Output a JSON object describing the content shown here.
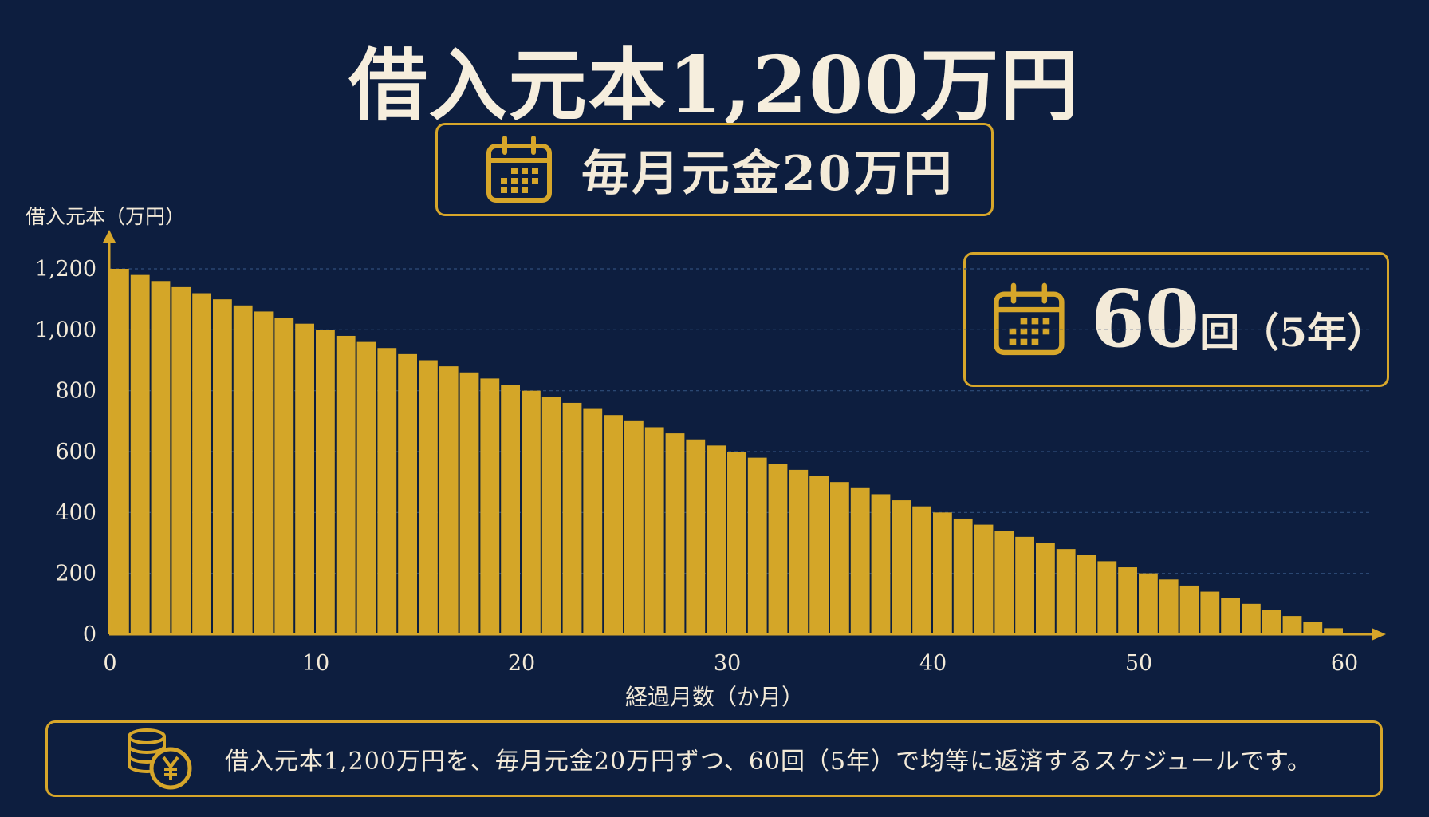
{
  "header": {
    "title": "借入元本1,200万円"
  },
  "monthly_box": {
    "icon": "calendar-icon",
    "text": "毎月元金20万円"
  },
  "term_box": {
    "icon": "calendar-icon",
    "count": "60",
    "suffix": "回（5年）"
  },
  "summary": {
    "icon": "yen-coins-icon",
    "text": "借入元本1,200万円を、毎月元金20万円ずつ、60回（5年）で均等に返済するスケジュールです。"
  },
  "colors": {
    "background": "#0d1e3f",
    "accent": "#d6a62a",
    "bar": "#d4a628",
    "text": "#f3ead8"
  },
  "chart_data": {
    "type": "bar",
    "title": "",
    "ylabel": "借入元本（万円）",
    "xlabel": "経過月数（か月）",
    "ylim": [
      0,
      1200
    ],
    "xlim": [
      0,
      60
    ],
    "yticks": [
      0,
      200,
      400,
      600,
      800,
      1000,
      1200
    ],
    "yticklabels": [
      "0",
      "200",
      "400",
      "600",
      "800",
      "1,000",
      "1,200"
    ],
    "xticks": [
      0,
      10,
      20,
      30,
      40,
      50,
      60
    ],
    "x": [
      0,
      1,
      2,
      3,
      4,
      5,
      6,
      7,
      8,
      9,
      10,
      11,
      12,
      13,
      14,
      15,
      16,
      17,
      18,
      19,
      20,
      21,
      22,
      23,
      24,
      25,
      26,
      27,
      28,
      29,
      30,
      31,
      32,
      33,
      34,
      35,
      36,
      37,
      38,
      39,
      40,
      41,
      42,
      43,
      44,
      45,
      46,
      47,
      48,
      49,
      50,
      51,
      52,
      53,
      54,
      55,
      56,
      57,
      58,
      59,
      60
    ],
    "values": [
      1200,
      1180,
      1160,
      1140,
      1120,
      1100,
      1080,
      1060,
      1040,
      1020,
      1000,
      980,
      960,
      940,
      920,
      900,
      880,
      860,
      840,
      820,
      800,
      780,
      760,
      740,
      720,
      700,
      680,
      660,
      640,
      620,
      600,
      580,
      560,
      540,
      520,
      500,
      480,
      460,
      440,
      420,
      400,
      380,
      360,
      340,
      320,
      300,
      280,
      260,
      240,
      220,
      200,
      180,
      160,
      140,
      120,
      100,
      80,
      60,
      40,
      20,
      0
    ],
    "grid": true
  }
}
